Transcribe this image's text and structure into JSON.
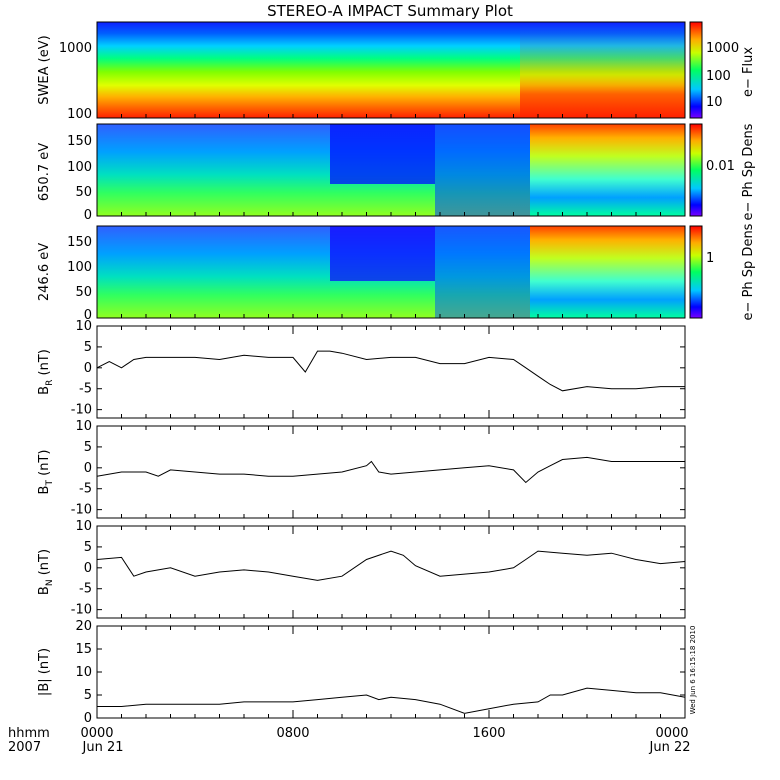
{
  "title": "STEREO-A IMPACT Summary Plot",
  "time_axis": {
    "row1_label": "hhmm",
    "row2_label": "2007",
    "ticks": [
      {
        "hhmm": "0000",
        "date": "Jun 21",
        "hour": 0
      },
      {
        "hhmm": "0800",
        "date": "",
        "hour": 8
      },
      {
        "hhmm": "1600",
        "date": "",
        "hour": 16
      },
      {
        "hhmm": "0000",
        "date": "Jun 22",
        "hour": 24
      }
    ],
    "range_hours": [
      0,
      24
    ]
  },
  "timestamp_text": "Wed Jun  6 16:15:18 2010",
  "chart_data": [
    {
      "type": "heatmap",
      "panel": "swea",
      "ylabel": "SWEA (eV)",
      "yscale": "log",
      "ylim": [
        100,
        2000
      ],
      "yticks": [
        "1000",
        "100"
      ],
      "colorbar_label": "e− Flux",
      "colorbar_ticks": [
        "1000",
        "100",
        "10"
      ],
      "colorscale": "rainbow (purple→red)"
    },
    {
      "type": "heatmap",
      "panel": "pad650",
      "ylabel": "650.7 eV",
      "ylim": [
        0,
        180
      ],
      "yticks": [
        "150",
        "100",
        "50",
        "0"
      ],
      "colorbar_label": "e− Ph Sp Dens",
      "colorbar_ticks": [
        "0.01"
      ],
      "colorscale": "rainbow (purple→red)"
    },
    {
      "type": "heatmap",
      "panel": "pad246",
      "ylabel": "246.6 eV",
      "ylim": [
        0,
        180
      ],
      "yticks": [
        "150",
        "100",
        "50",
        "0"
      ],
      "colorbar_label": "e− Ph Sp Dens",
      "colorbar_ticks": [
        "1"
      ],
      "colorscale": "rainbow (purple→red)"
    },
    {
      "type": "line",
      "panel": "br",
      "ylabel_main": "B",
      "ylabel_sub": "R",
      "ylabel_unit": " (nT)",
      "ylim": [
        -12,
        10
      ],
      "yticks": [
        "10",
        "5",
        "0",
        "-5",
        "-10"
      ],
      "x": [
        0,
        0.5,
        1,
        1.5,
        2,
        3,
        4,
        5,
        6,
        7,
        8,
        8.5,
        9,
        9.5,
        10,
        11,
        12,
        13,
        14,
        15,
        16,
        17,
        17.5,
        18,
        18.5,
        19,
        20,
        21,
        22,
        23,
        24
      ],
      "y": [
        0,
        1.5,
        0,
        2,
        2.5,
        2.5,
        2.5,
        2,
        3,
        2.5,
        2.5,
        -1,
        4,
        4,
        3.5,
        2,
        2.5,
        2.5,
        1,
        1,
        2.5,
        2,
        0,
        -2,
        -4,
        -5.5,
        -4.5,
        -5,
        -5,
        -4.5,
        -4.5
      ]
    },
    {
      "type": "line",
      "panel": "bt",
      "ylabel_main": "B",
      "ylabel_sub": "T",
      "ylabel_unit": " (nT)",
      "ylim": [
        -12,
        10
      ],
      "yticks": [
        "10",
        "5",
        "0",
        "-5",
        "-10"
      ],
      "x": [
        0,
        1,
        2,
        2.5,
        3,
        4,
        5,
        6,
        7,
        8,
        9,
        10,
        11,
        11.2,
        11.5,
        12,
        13,
        14,
        15,
        16,
        17,
        17.5,
        18,
        18.5,
        19,
        20,
        21,
        22,
        23,
        24
      ],
      "y": [
        -2,
        -1,
        -1,
        -2,
        -0.5,
        -1,
        -1.5,
        -1.5,
        -2,
        -2,
        -1.5,
        -1,
        0.5,
        1.5,
        -1,
        -1.5,
        -1,
        -0.5,
        0,
        0.5,
        -0.5,
        -3.5,
        -1,
        0.5,
        2,
        2.5,
        1.5,
        1.5,
        1.5,
        1.5
      ]
    },
    {
      "type": "line",
      "panel": "bn",
      "ylabel_main": "B",
      "ylabel_sub": "N",
      "ylabel_unit": " (nT)",
      "ylim": [
        -12,
        10
      ],
      "yticks": [
        "10",
        "5",
        "0",
        "-5",
        "-10"
      ],
      "x": [
        0,
        1,
        1.5,
        2,
        3,
        4,
        5,
        6,
        7,
        8,
        9,
        10,
        11,
        12,
        12.5,
        13,
        14,
        15,
        16,
        17,
        17.5,
        18,
        19,
        20,
        21,
        22,
        23,
        24
      ],
      "y": [
        2,
        2.5,
        -2,
        -1,
        0,
        -2,
        -1,
        -0.5,
        -1,
        -2,
        -3,
        -2,
        2,
        4,
        3,
        0.5,
        -2,
        -1.5,
        -1,
        0,
        2,
        4,
        3.5,
        3,
        3.5,
        2,
        1,
        1.5
      ]
    },
    {
      "type": "line",
      "panel": "bmag",
      "ylabel_main": "|B| (nT)",
      "ylabel_sub": "",
      "ylabel_unit": "",
      "ylim": [
        0,
        20
      ],
      "yticks": [
        "20",
        "15",
        "10",
        "5",
        "0"
      ],
      "x": [
        0,
        1,
        2,
        3,
        4,
        5,
        6,
        7,
        8,
        9,
        10,
        11,
        11.5,
        12,
        13,
        14,
        15,
        16,
        17,
        18,
        18.5,
        19,
        20,
        21,
        22,
        23,
        24
      ],
      "y": [
        2.5,
        2.5,
        3,
        3,
        3,
        3,
        3.5,
        3.5,
        3.5,
        4,
        4.5,
        5,
        4,
        4.5,
        4,
        3,
        1,
        2,
        3,
        3.5,
        5,
        5,
        6.5,
        6,
        5.5,
        5.5,
        4.5
      ]
    }
  ]
}
